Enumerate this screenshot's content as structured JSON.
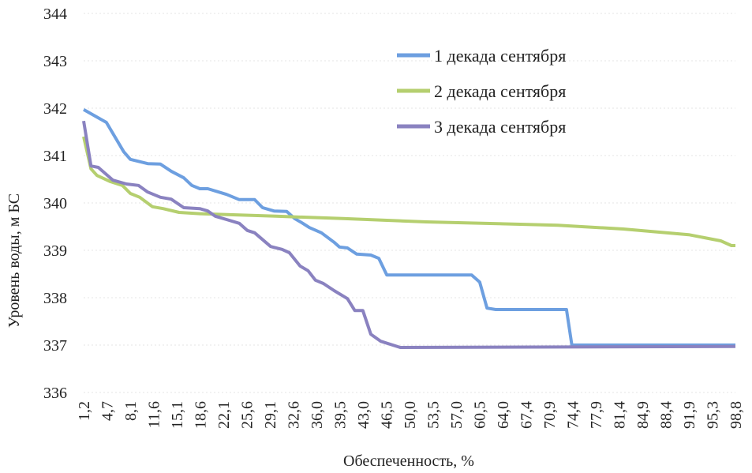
{
  "chart_data": {
    "type": "line",
    "title": "",
    "xlabel": "Обеспеченность, %",
    "ylabel": "Уровень воды, м БС",
    "xlim": [
      1.2,
      98.8
    ],
    "ylim": [
      336,
      344
    ],
    "yticks": [
      "336",
      "337",
      "338",
      "339",
      "340",
      "341",
      "342",
      "343",
      "344"
    ],
    "xticks": [
      "1,2",
      "4,7",
      "8,1",
      "11,6",
      "15,1",
      "18,6",
      "22,1",
      "25,6",
      "29,1",
      "32,6",
      "36,0",
      "39,5",
      "43,0",
      "46,5",
      "50,0",
      "53,5",
      "57,0",
      "60,5",
      "64,0",
      "67,4",
      "70,9",
      "74,4",
      "77,9",
      "81,4",
      "84,9",
      "88,4",
      "91,9",
      "95,3",
      "98,8"
    ],
    "grid": true,
    "legend_position": "top-right",
    "series": [
      {
        "name": "1 декада сентября",
        "color": "#6d9fe0",
        "points": [
          [
            1.2,
            341.97
          ],
          [
            4.6,
            341.7
          ],
          [
            7.2,
            341.08
          ],
          [
            8.2,
            340.92
          ],
          [
            10.8,
            340.83
          ],
          [
            12.7,
            340.82
          ],
          [
            14.3,
            340.67
          ],
          [
            16.2,
            340.53
          ],
          [
            17.4,
            340.37
          ],
          [
            18.6,
            340.3
          ],
          [
            19.8,
            340.3
          ],
          [
            22.6,
            340.18
          ],
          [
            24.5,
            340.07
          ],
          [
            26.8,
            340.07
          ],
          [
            28.0,
            339.9
          ],
          [
            29.7,
            339.83
          ],
          [
            31.6,
            339.82
          ],
          [
            32.8,
            339.67
          ],
          [
            33.9,
            339.58
          ],
          [
            35.0,
            339.48
          ],
          [
            36.8,
            339.37
          ],
          [
            38.7,
            339.17
          ],
          [
            39.5,
            339.07
          ],
          [
            40.7,
            339.05
          ],
          [
            42.1,
            338.92
          ],
          [
            44.2,
            338.9
          ],
          [
            45.4,
            338.83
          ],
          [
            46.6,
            338.48
          ],
          [
            59.3,
            338.48
          ],
          [
            60.5,
            338.33
          ],
          [
            61.6,
            337.78
          ],
          [
            62.9,
            337.75
          ],
          [
            73.5,
            337.75
          ],
          [
            74.3,
            337.0
          ],
          [
            98.8,
            337.0
          ]
        ]
      },
      {
        "name": "2 декада сентября",
        "color": "#b5cf6f",
        "points": [
          [
            1.2,
            341.4
          ],
          [
            2.3,
            340.72
          ],
          [
            3.2,
            340.58
          ],
          [
            5.2,
            340.45
          ],
          [
            7.0,
            340.37
          ],
          [
            8.2,
            340.2
          ],
          [
            9.6,
            340.12
          ],
          [
            11.5,
            339.92
          ],
          [
            13.1,
            339.88
          ],
          [
            15.5,
            339.8
          ],
          [
            19.0,
            339.77
          ],
          [
            30.0,
            339.72
          ],
          [
            40.0,
            339.67
          ],
          [
            52.5,
            339.6
          ],
          [
            72.2,
            339.53
          ],
          [
            82.0,
            339.45
          ],
          [
            91.8,
            339.33
          ],
          [
            96.6,
            339.2
          ],
          [
            98.2,
            339.1
          ],
          [
            98.8,
            339.1
          ]
        ]
      },
      {
        "name": "3 декада сентября",
        "color": "#8a82c0",
        "points": [
          [
            1.2,
            341.73
          ],
          [
            2.3,
            340.78
          ],
          [
            3.4,
            340.75
          ],
          [
            5.6,
            340.48
          ],
          [
            7.6,
            340.4
          ],
          [
            9.4,
            340.37
          ],
          [
            10.8,
            340.23
          ],
          [
            12.7,
            340.12
          ],
          [
            14.3,
            340.08
          ],
          [
            16.2,
            339.9
          ],
          [
            18.6,
            339.88
          ],
          [
            19.8,
            339.83
          ],
          [
            20.9,
            339.72
          ],
          [
            22.6,
            339.65
          ],
          [
            24.5,
            339.57
          ],
          [
            25.7,
            339.42
          ],
          [
            26.8,
            339.37
          ],
          [
            29.2,
            339.08
          ],
          [
            30.9,
            339.02
          ],
          [
            32.0,
            338.95
          ],
          [
            33.6,
            338.67
          ],
          [
            34.8,
            338.57
          ],
          [
            35.9,
            338.37
          ],
          [
            37.1,
            338.3
          ],
          [
            38.7,
            338.15
          ],
          [
            40.7,
            337.98
          ],
          [
            41.8,
            337.73
          ],
          [
            43.0,
            337.73
          ],
          [
            44.2,
            337.23
          ],
          [
            45.7,
            337.08
          ],
          [
            48.6,
            336.95
          ],
          [
            98.8,
            336.97
          ]
        ]
      }
    ]
  }
}
